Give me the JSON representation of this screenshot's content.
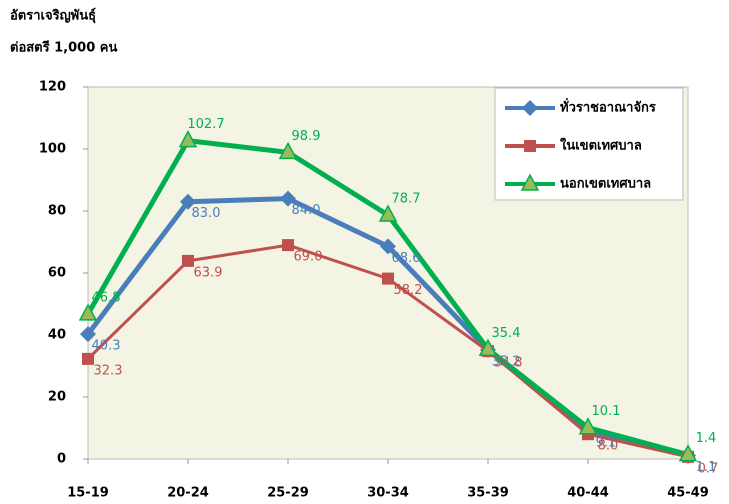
{
  "chart_data": {
    "type": "line",
    "y_label_line1": "อัตราเจริญพันธุ์",
    "y_label_line2": "ต่อสตรี 1,000 คน",
    "categories": [
      "15-19",
      "20-24",
      "25-29",
      "30-34",
      "35-39",
      "40-44",
      "45-49"
    ],
    "series": [
      {
        "name": "ทั่วราชอาณาจักร",
        "color": "#4a7ebb",
        "marker": "diamond",
        "values": [
          40.3,
          83.0,
          84.0,
          68.6,
          35.2,
          9.1,
          1.1
        ],
        "value_labels": [
          "40.3",
          "83.0",
          "84.0",
          "68.6",
          "35.2",
          "9.1",
          "1.1"
        ]
      },
      {
        "name": "ในเขตเทศบาล",
        "color": "#c0504d",
        "marker": "square",
        "values": [
          32.3,
          63.9,
          69.0,
          58.2,
          34.8,
          8.0,
          0.7
        ],
        "value_labels": [
          "32.3",
          "63.9",
          "69.0",
          "58.2",
          "34.8",
          "8.0",
          "0.7"
        ]
      },
      {
        "name": "นอกเขตเทศบาล",
        "color": "#00b050",
        "marker": "triangle",
        "values": [
          46.8,
          102.7,
          98.9,
          78.7,
          35.4,
          10.1,
          1.4
        ],
        "value_labels": [
          "46.8",
          "102.7",
          "98.9",
          "78.7",
          "35.4",
          "10.1",
          "1.4"
        ]
      }
    ],
    "ylim": [
      0,
      120
    ],
    "yticks": [
      0,
      20,
      40,
      60,
      80,
      100,
      120
    ],
    "grid": false,
    "legend": "top-right"
  }
}
